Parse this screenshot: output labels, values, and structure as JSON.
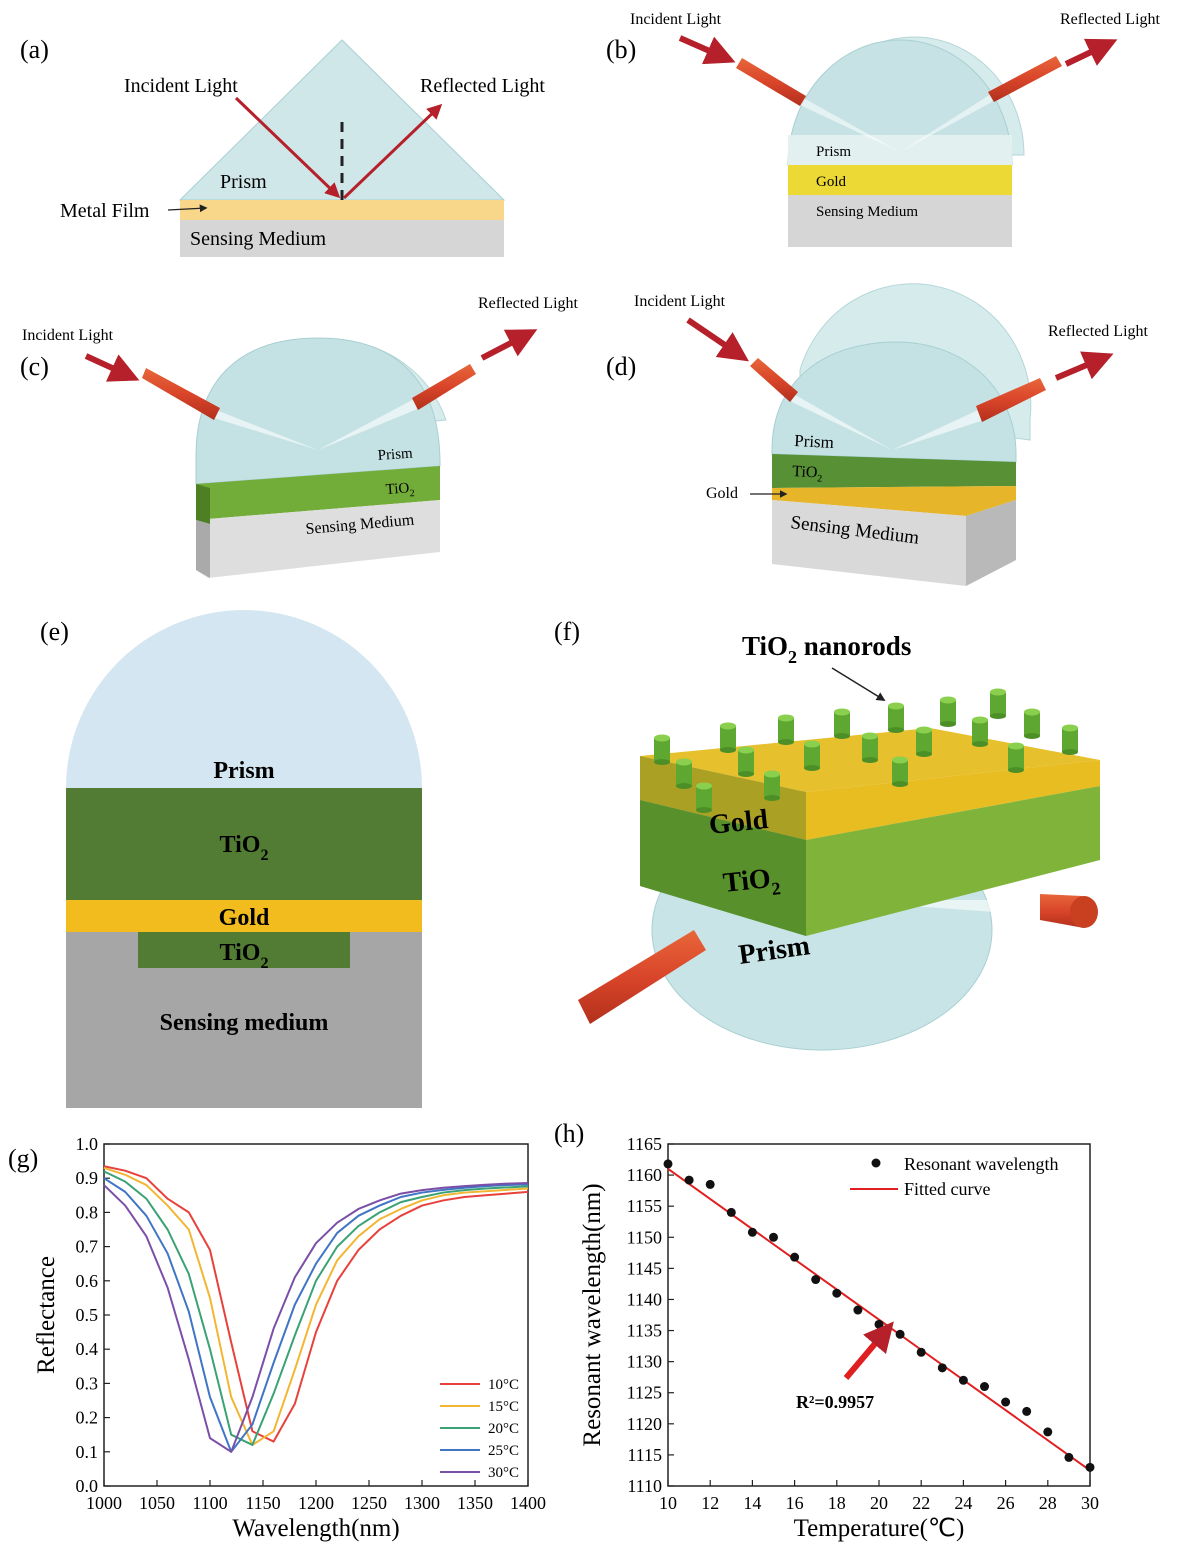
{
  "panels": {
    "a": {
      "label": "(a)",
      "incident": "Incident Light",
      "reflected": "Reflected Light",
      "prism": "Prism",
      "metal_film": "Metal Film",
      "sensing": "Sensing Medium"
    },
    "b": {
      "label": "(b)",
      "incident": "Incident Light",
      "reflected": "Reflected Light",
      "prism": "Prism",
      "gold": "Gold",
      "sensing": "Sensing Medium"
    },
    "c": {
      "label": "(c)",
      "incident": "Incident Light",
      "reflected": "Reflected Light",
      "prism": "Prism",
      "tio2_base": "TiO",
      "tio2_sub": "2",
      "sensing": "Sensing Medium"
    },
    "d": {
      "label": "(d)",
      "incident": "Incident Light",
      "reflected": "Reflected Light",
      "prism": "Prism",
      "tio2_base": "TiO",
      "tio2_sub": "2",
      "gold": "Gold",
      "sensing": "Sensing Medium"
    },
    "e": {
      "label": "(e)",
      "prism": "Prism",
      "tio2_base": "TiO",
      "tio2_sub": "2",
      "gold": "Gold",
      "tio2b_base": "TiO",
      "tio2b_sub": "2",
      "sensing": "Sensing medium"
    },
    "f": {
      "label": "(f)",
      "nanorods_base": "TiO",
      "nanorods_sub": "2",
      "nanorods_rest": " nanorods",
      "gold": "Gold",
      "tio2_base": "TiO",
      "tio2_sub": "2",
      "prism": "Prism"
    },
    "g": {
      "label": "(g)"
    },
    "h": {
      "label": "(h)",
      "annotation": "R²=0.9957"
    }
  },
  "chart_data": [
    {
      "panel": "g",
      "type": "line",
      "title": "",
      "xlabel": "Wavelength(nm)",
      "ylabel": "Reflectance",
      "xlim": [
        1000,
        1400
      ],
      "ylim": [
        0.0,
        1.0
      ],
      "xticks": [
        "1000",
        "1050",
        "1100",
        "1150",
        "1200",
        "1250",
        "1300",
        "1350",
        "1400"
      ],
      "yticks": [
        "0.0",
        "0.1",
        "0.2",
        "0.3",
        "0.4",
        "0.5",
        "0.6",
        "0.7",
        "0.8",
        "0.9",
        "1.0"
      ],
      "legend_position": "bottom-right",
      "x": [
        1000,
        1020,
        1040,
        1060,
        1080,
        1100,
        1120,
        1140,
        1160,
        1180,
        1200,
        1220,
        1240,
        1260,
        1280,
        1300,
        1320,
        1340,
        1360,
        1380,
        1400
      ],
      "series": [
        {
          "name": "10°C",
          "color": "#e8413c",
          "values": [
            0.935,
            0.922,
            0.9,
            0.84,
            0.8,
            0.69,
            0.42,
            0.16,
            0.13,
            0.24,
            0.45,
            0.6,
            0.69,
            0.75,
            0.79,
            0.82,
            0.835,
            0.845,
            0.85,
            0.855,
            0.86
          ]
        },
        {
          "name": "15°C",
          "color": "#f2b632",
          "values": [
            0.93,
            0.91,
            0.88,
            0.82,
            0.75,
            0.55,
            0.26,
            0.12,
            0.16,
            0.34,
            0.53,
            0.66,
            0.73,
            0.78,
            0.81,
            0.835,
            0.85,
            0.858,
            0.862,
            0.866,
            0.87
          ]
        },
        {
          "name": "20°C",
          "color": "#3aa275",
          "values": [
            0.92,
            0.89,
            0.84,
            0.75,
            0.62,
            0.4,
            0.15,
            0.12,
            0.27,
            0.44,
            0.6,
            0.7,
            0.76,
            0.8,
            0.83,
            0.845,
            0.858,
            0.865,
            0.87,
            0.873,
            0.876
          ]
        },
        {
          "name": "25°C",
          "color": "#3f75c4",
          "values": [
            0.9,
            0.86,
            0.79,
            0.68,
            0.51,
            0.26,
            0.1,
            0.18,
            0.36,
            0.53,
            0.65,
            0.74,
            0.79,
            0.82,
            0.845,
            0.858,
            0.866,
            0.872,
            0.877,
            0.88,
            0.882
          ]
        },
        {
          "name": "30°C",
          "color": "#7b4fa8",
          "values": [
            0.88,
            0.82,
            0.73,
            0.58,
            0.37,
            0.14,
            0.1,
            0.26,
            0.46,
            0.61,
            0.71,
            0.77,
            0.81,
            0.835,
            0.855,
            0.865,
            0.872,
            0.877,
            0.881,
            0.884,
            0.886
          ]
        }
      ]
    },
    {
      "panel": "h",
      "type": "scatter",
      "title": "",
      "xlabel": "Temperature(℃)",
      "ylabel": "Resonant wavelength(nm)",
      "xlim": [
        10,
        30
      ],
      "ylim": [
        1110,
        1165
      ],
      "xticks": [
        "10",
        "12",
        "14",
        "16",
        "18",
        "20",
        "22",
        "24",
        "26",
        "28",
        "30"
      ],
      "yticks": [
        "1110",
        "1115",
        "1120",
        "1125",
        "1130",
        "1135",
        "1140",
        "1145",
        "1150",
        "1155",
        "1160",
        "1165"
      ],
      "legend_position": "top-right",
      "series": [
        {
          "name": "Resonant wavelength",
          "color": "#111111",
          "x": [
            10,
            11,
            12,
            13,
            14,
            15,
            16,
            17,
            18,
            19,
            20,
            21,
            22,
            23,
            24,
            25,
            26,
            27,
            28,
            29,
            30
          ],
          "values": [
            1161.8,
            1159.2,
            1158.5,
            1154.0,
            1150.8,
            1150.0,
            1146.8,
            1143.2,
            1141.0,
            1138.3,
            1136.0,
            1134.4,
            1131.5,
            1129.0,
            1127.0,
            1126.0,
            1123.5,
            1122.0,
            1118.7,
            1114.6,
            1113.0
          ]
        },
        {
          "name": "Fitted curve",
          "color": "#e02020",
          "kind": "line",
          "x": [
            10,
            30
          ],
          "values": [
            1161.0,
            1112.5
          ]
        }
      ]
    }
  ]
}
